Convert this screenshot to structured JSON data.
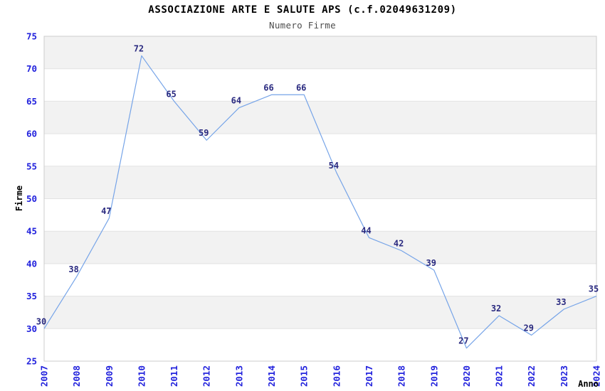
{
  "header": {
    "title": "ASSOCIAZIONE ARTE E SALUTE APS (c.f.02049631209)",
    "subtitle": "Numero Firme"
  },
  "chart_data": {
    "type": "line",
    "title": "ASSOCIAZIONE ARTE E SALUTE APS (c.f.02049631209)",
    "subtitle": "Numero Firme",
    "xlabel": "Anno",
    "ylabel": "Firme",
    "categories": [
      "2007",
      "2008",
      "2009",
      "2010",
      "2011",
      "2012",
      "2013",
      "2014",
      "2015",
      "2016",
      "2017",
      "2018",
      "2019",
      "2020",
      "2021",
      "2022",
      "2023",
      "2024"
    ],
    "values": [
      30,
      38,
      47,
      72,
      65,
      59,
      64,
      66,
      66,
      54,
      44,
      42,
      39,
      27,
      32,
      29,
      33,
      35
    ],
    "ylim": [
      25,
      75
    ],
    "ytick_step": 5,
    "yticks": [
      25,
      30,
      35,
      40,
      45,
      50,
      55,
      60,
      65,
      70,
      75
    ],
    "grid": "alternating horizontal bands",
    "legend": "none",
    "point_labels_visible": true,
    "colors": {
      "line": "#76a4e8",
      "tick_label": "#2222dd",
      "point_label": "#2a2a80",
      "band_gray": "#f2f2f2",
      "plot_border": "#cccccc",
      "gridline": "#e3e3e3",
      "title": "#000000",
      "subtitle": "#4d4d4d",
      "background": "#ffffff"
    }
  }
}
